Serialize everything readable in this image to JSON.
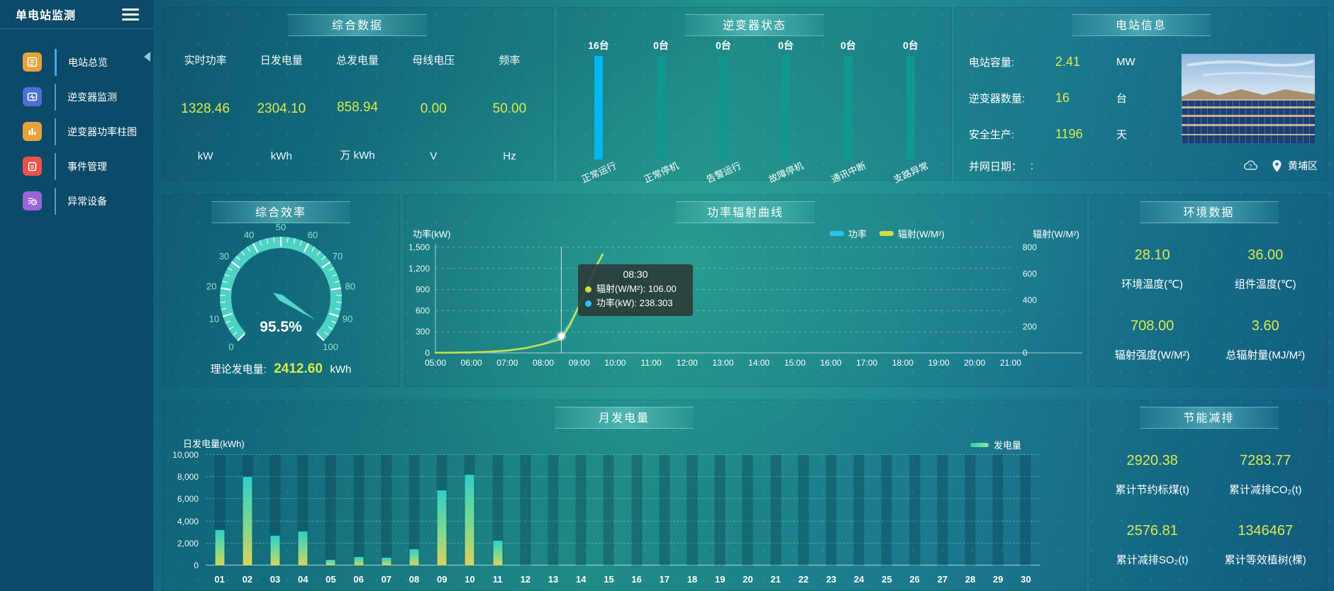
{
  "app": {
    "title": "单电站监测"
  },
  "sidebar": {
    "items": [
      {
        "label": "电站总览"
      },
      {
        "label": "逆变器监测"
      },
      {
        "label": "逆变器功率柱图"
      },
      {
        "label": "事件管理"
      },
      {
        "label": "异常设备"
      }
    ]
  },
  "summary": {
    "title": "综合数据",
    "metrics": [
      {
        "label": "实时功率",
        "value": "1328.46",
        "unit": "kW"
      },
      {
        "label": "日发电量",
        "value": "2304.10",
        "unit": "kWh"
      },
      {
        "label": "总发电量",
        "value": "858.94",
        "unit": "万 kWh"
      },
      {
        "label": "母线电压",
        "value": "0.00",
        "unit": "V"
      },
      {
        "label": "频率",
        "value": "50.00",
        "unit": "Hz"
      }
    ]
  },
  "inverter": {
    "title": "逆变器状态",
    "bars": [
      {
        "count": "16台",
        "label": "正常运行",
        "highlight": true
      },
      {
        "count": "0台",
        "label": "正常停机",
        "highlight": false
      },
      {
        "count": "0台",
        "label": "告警运行",
        "highlight": false
      },
      {
        "count": "0台",
        "label": "故障停机",
        "highlight": false
      },
      {
        "count": "0台",
        "label": "通讯中断",
        "highlight": false
      },
      {
        "count": "0台",
        "label": "支路异常",
        "highlight": false
      }
    ]
  },
  "station": {
    "title": "电站信息",
    "rows": [
      {
        "label": "电站容量:",
        "value": "2.41",
        "unit": "MW"
      },
      {
        "label": "逆变器数量:",
        "value": "16",
        "unit": "台"
      },
      {
        "label": "安全生产:",
        "value": "1196",
        "unit": "天"
      }
    ],
    "grid_date_label": "并网日期：",
    "grid_date_value": ":",
    "location": "黄埔区"
  },
  "efficiency": {
    "title": "综合效率",
    "value_label": "95.5%",
    "footer_label": "理论发电量:",
    "footer_value": "2412.60",
    "footer_unit": "kWh"
  },
  "power_curve": {
    "title": "功率辐射曲线",
    "left_axis_title": "功率(kW)",
    "right_axis_title": "辐射(W/M²)",
    "legend": [
      "功率",
      "辐射(W/M²)"
    ],
    "tooltip": {
      "time": "08:30",
      "line1": "辐射(W/M²): 106.00",
      "line2": "功率(kW): 238.303"
    }
  },
  "environment": {
    "title": "环境数据",
    "metrics": [
      {
        "value": "28.10",
        "label": "环境温度(℃)"
      },
      {
        "value": "36.00",
        "label": "组件温度(℃)"
      },
      {
        "value": "708.00",
        "label": "辐射强度(W/M²)"
      },
      {
        "value": "3.60",
        "label": "总辐射量(MJ/M²)"
      }
    ]
  },
  "monthly": {
    "title": "月发电量",
    "ylabel": "日发电量(kWh)",
    "legend": "发电量"
  },
  "saving": {
    "title": "节能减排",
    "metrics": [
      {
        "value": "2920.38",
        "label": "累计节约标煤(t)"
      },
      {
        "value": "7283.77",
        "label": "累计减排CO₂(t)"
      },
      {
        "value": "2576.81",
        "label": "累计减排SO₂(t)"
      },
      {
        "value": "1346467",
        "label": "累计等效植树(棵)"
      }
    ]
  },
  "colors": {
    "value_accent": "#d8ea4f",
    "bar_highlight": "#00b7f0",
    "bar_normal": "#0f9790",
    "line_power": "#29c4f6",
    "line_radiation": "#cfdd45",
    "gauge": "#4ed2c4"
  },
  "chart_data": [
    {
      "type": "gauge",
      "title": "综合效率",
      "min": 0,
      "max": 100,
      "value": 95.5,
      "tick_step": 10,
      "label": "95.5%"
    },
    {
      "type": "line",
      "title": "功率辐射曲线",
      "x_ticks": [
        "05:00",
        "06:00",
        "07:00",
        "08:00",
        "09:00",
        "10:00",
        "11:00",
        "12:00",
        "13:00",
        "14:00",
        "15:00",
        "16:00",
        "17:00",
        "18:00",
        "19:00",
        "20:00",
        "21:00"
      ],
      "y_left": {
        "label": "功率(kW)",
        "min": 0,
        "max": 1500,
        "ticks": [
          "0",
          "300",
          "600",
          "900",
          "1,200",
          "1,500"
        ]
      },
      "y_right": {
        "label": "辐射(W/M²)",
        "min": 0,
        "max": 800,
        "ticks": [
          "0",
          "200",
          "400",
          "600",
          "800"
        ]
      },
      "legend_position": "top-right",
      "series": [
        {
          "name": "功率",
          "axis": "left",
          "color": "#29c4f6",
          "points": [
            [
              5,
              2
            ],
            [
              5.5,
              3
            ],
            [
              6,
              6
            ],
            [
              6.5,
              13
            ],
            [
              7,
              32
            ],
            [
              7.5,
              65
            ],
            [
              8,
              128
            ],
            [
              8.5,
              238.303
            ],
            [
              8.75,
              430
            ],
            [
              9,
              680
            ],
            [
              9.25,
              980
            ],
            [
              9.5,
              1250
            ],
            [
              9.65,
              1390
            ]
          ]
        },
        {
          "name": "辐射(W/M²)",
          "axis": "right",
          "color": "#cfdd45",
          "points": [
            [
              5,
              1
            ],
            [
              5.5,
              2
            ],
            [
              6,
              4
            ],
            [
              6.5,
              9
            ],
            [
              7,
              18
            ],
            [
              7.5,
              36
            ],
            [
              8,
              66
            ],
            [
              8.5,
              106
            ],
            [
              8.75,
              215
            ],
            [
              9,
              360
            ],
            [
              9.25,
              530
            ],
            [
              9.5,
              670
            ],
            [
              9.65,
              748
            ]
          ]
        }
      ],
      "tooltip_x": 8.5,
      "tooltip": {
        "time": "08:30",
        "radiation": 106.0,
        "power": 238.303
      }
    },
    {
      "type": "bar",
      "title": "月发电量",
      "ylabel": "日发电量(kWh)",
      "legend": "发电量",
      "categories": [
        "01",
        "02",
        "03",
        "04",
        "05",
        "06",
        "07",
        "08",
        "09",
        "10",
        "11",
        "12",
        "13",
        "14",
        "15",
        "16",
        "17",
        "18",
        "19",
        "20",
        "21",
        "22",
        "23",
        "24",
        "25",
        "26",
        "27",
        "28",
        "29",
        "30"
      ],
      "values": [
        3200,
        8000,
        2700,
        3100,
        500,
        800,
        700,
        1500,
        6800,
        8200,
        2250,
        0,
        0,
        0,
        0,
        0,
        0,
        0,
        0,
        0,
        0,
        0,
        0,
        0,
        0,
        0,
        0,
        0,
        0,
        0
      ],
      "ylim": [
        0,
        10000
      ],
      "yticks": [
        "0",
        "2,000",
        "4,000",
        "6,000",
        "8,000",
        "10,000"
      ]
    },
    {
      "type": "bar",
      "title": "逆变器状态",
      "unit": "台",
      "categories": [
        "正常运行",
        "正常停机",
        "告警运行",
        "故障停机",
        "通讯中断",
        "支路异常"
      ],
      "values": [
        16,
        0,
        0,
        0,
        0,
        0
      ]
    }
  ]
}
